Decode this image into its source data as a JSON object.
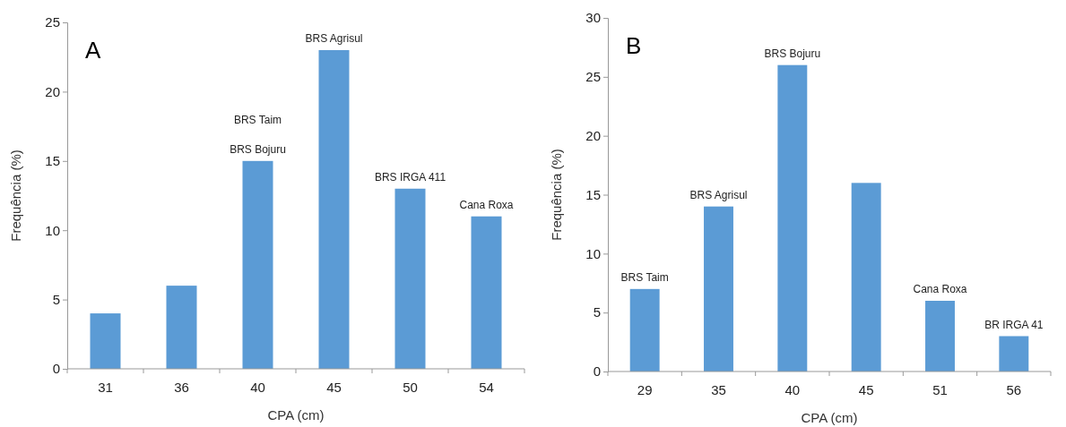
{
  "chart_data": [
    {
      "type": "bar",
      "title": "A",
      "xlabel": "CPA (cm)",
      "ylabel": "Frequência (%)",
      "categories": [
        "31",
        "36",
        "40",
        "45",
        "50",
        "54"
      ],
      "values": [
        4,
        6,
        15,
        23,
        13,
        11
      ],
      "color": "#5b9bd5",
      "ylim": [
        0,
        25
      ],
      "yticks": [
        0,
        5,
        10,
        15,
        20,
        25
      ],
      "grid": false,
      "annotations": [
        {
          "text": "BRS Bojuru",
          "x": "40",
          "y": 15
        },
        "BRS Taim",
        {
          "text": "BRS Agrisul",
          "x": "45",
          "y": 23
        },
        {
          "text": "BRS IRGA 411",
          "x": "50",
          "y": 13
        },
        {
          "text": "Cana Roxa",
          "x": "54",
          "y": 11
        }
      ]
    },
    {
      "type": "bar",
      "title": "B",
      "xlabel": "CPA (cm)",
      "ylabel": "Frequência (%)",
      "categories": [
        "29",
        "35",
        "40",
        "45",
        "51",
        "56"
      ],
      "values": [
        7,
        14,
        26,
        16,
        6,
        3
      ],
      "color": "#5b9bd5",
      "ylim": [
        0,
        30
      ],
      "yticks": [
        0,
        5,
        10,
        15,
        20,
        25,
        30
      ],
      "grid": false,
      "annotations": [
        {
          "text": "BRS Taim",
          "x": "29",
          "y": 7
        },
        {
          "text": "BRS Agrisul",
          "x": "35",
          "y": 14
        },
        {
          "text": "BRS Bojuru",
          "x": "40",
          "y": 26
        },
        {
          "text": "Cana Roxa",
          "x": "51",
          "y": 6
        },
        {
          "text": "BR IRGA 41",
          "x": "56",
          "y": 3
        }
      ]
    }
  ]
}
